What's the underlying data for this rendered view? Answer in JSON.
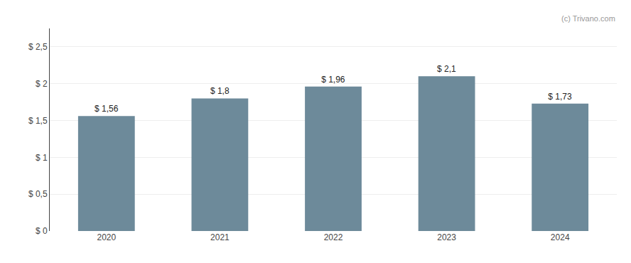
{
  "chart_data": {
    "type": "bar",
    "categories": [
      "2020",
      "2021",
      "2022",
      "2023",
      "2024"
    ],
    "values": [
      1.56,
      1.8,
      1.96,
      2.1,
      1.73
    ],
    "value_labels": [
      "$ 1,56",
      "$ 1,8",
      "$ 1,96",
      "$ 2,1",
      "$ 1,73"
    ],
    "data_labels": true,
    "color": "#6d8a9a",
    "ylim": [
      0,
      2.75
    ],
    "yticks": [
      {
        "value": 0,
        "label": "$ 0"
      },
      {
        "value": 0.5,
        "label": "$ 0,5"
      },
      {
        "value": 1.0,
        "label": "$ 1"
      },
      {
        "value": 1.5,
        "label": "$ 1,5"
      },
      {
        "value": 2.0,
        "label": "$ 2"
      },
      {
        "value": 2.5,
        "label": "$ 2,5"
      }
    ],
    "grid": true,
    "annotations": [
      "(c) Trivano.com"
    ]
  }
}
